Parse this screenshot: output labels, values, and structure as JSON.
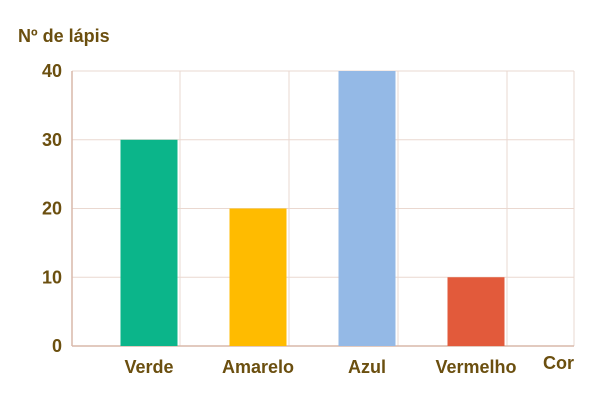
{
  "chart_data": {
    "type": "bar",
    "ylabel": "Nº de lápis",
    "xlabel": "Cor",
    "categories": [
      "Verde",
      "Amarelo",
      "Azul",
      "Vermelho"
    ],
    "values": [
      30,
      20,
      40,
      10
    ],
    "colors": [
      "#0bb58a",
      "#ffbb00",
      "#94b9e6",
      "#e25a3b"
    ],
    "ylim": [
      0,
      40
    ],
    "yticks": [
      0,
      10,
      20,
      30,
      40
    ],
    "grid": true,
    "legend": "none"
  },
  "colors": {
    "text": "#6b4f0f",
    "grid": "#ead8d0",
    "axis": "#d9b8aa"
  }
}
